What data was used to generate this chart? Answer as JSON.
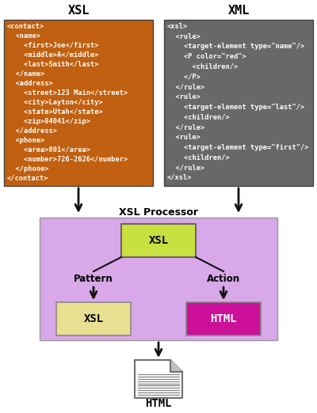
{
  "xsl_label": "XSL",
  "xml_label": "XML",
  "html_label": "HTML",
  "xsl_processor_label": "XSL Processor",
  "pattern_label": "Pattern",
  "action_label": "Action",
  "xsl_inner_label": "XSL",
  "xsl_small_label": "XSL",
  "html_small_label": "HTML",
  "xsl_box_color": "#c06010",
  "xml_box_color": "#686868",
  "processor_box_color": "#d8a8e8",
  "xsl_inner_color": "#c8e040",
  "xsl_small_color": "#e8e090",
  "html_small_color": "#cc1099",
  "bg_color": "#ffffff",
  "arrow_color": "#111111",
  "line_color": "#111111",
  "xsl_text_lines": [
    "<contact>",
    "  <name>",
    "    <first>Joe</first>",
    "    <middle>A</middle>",
    "    <last>Smith</last>",
    "  </name>",
    "  <address>",
    "    <street>123 Main</street>",
    "    <city>Layton</city>",
    "    <state>Utah</state>",
    "    <zip>84041</zip>",
    "  </address>",
    "  <phone>",
    "    <area>801</area>",
    "    <number>726-2626</number>",
    "  </phone>",
    "</contact>"
  ],
  "xml_text_lines": [
    "<xsl>",
    "  <rule>",
    "    <target-element type=\"name\"/>",
    "    <P color=\"red\">",
    "      <children/>",
    "    </P>",
    "  </rule>",
    "  <rule>",
    "    <target-element type=\"last\"/>",
    "    <children/>",
    "  </rule>",
    "  <rule>",
    "    <target-element type=\"first\"/>",
    "    <children/>",
    "  </rule>",
    "</xsl>"
  ],
  "fig_w": 4.0,
  "fig_h": 5.22,
  "dpi": 100
}
